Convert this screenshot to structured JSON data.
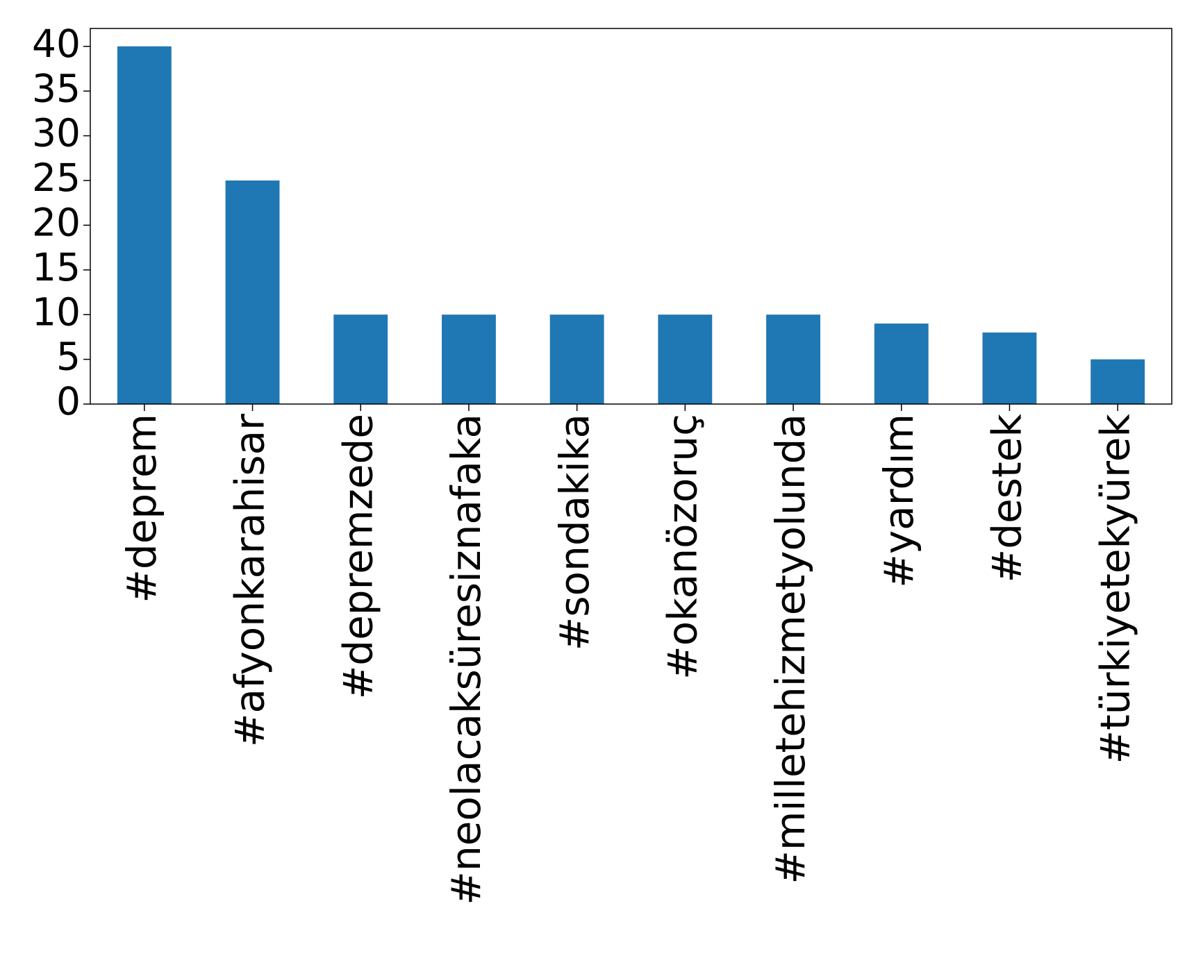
{
  "chart_data": {
    "type": "bar",
    "categories": [
      "#deprem",
      "#afyonkarahisar",
      "#depremzede",
      "#neolacaksüresiznafaka",
      "#sondakika",
      "#okanözoruç",
      "#milletehizmetyolunda",
      "#yardım",
      "#destek",
      "#türkiyetekyürek"
    ],
    "values": [
      40,
      25,
      10,
      10,
      10,
      10,
      10,
      9,
      8,
      5
    ],
    "color": "#1f77b4",
    "ylim": [
      0,
      42
    ],
    "yticks": [
      0,
      5,
      10,
      15,
      20,
      25,
      30,
      35,
      40
    ],
    "grid": false
  }
}
